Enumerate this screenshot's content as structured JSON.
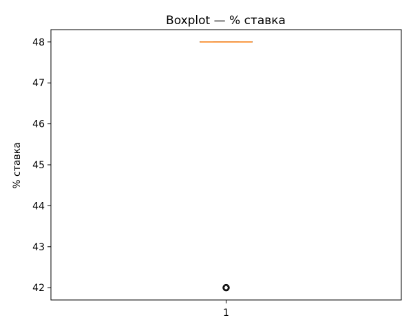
{
  "chart_data": {
    "type": "boxplot",
    "title": "Boxplot — % ставка",
    "xlabel": "",
    "ylabel": "% ставка",
    "categories": [
      "1"
    ],
    "ylim": [
      41.7,
      48.3
    ],
    "yticks": [
      42,
      43,
      44,
      45,
      46,
      47,
      48
    ],
    "grid": false,
    "boxes": [
      {
        "category": "1",
        "q1": 48,
        "median": 48,
        "q3": 48,
        "whisker_low": 48,
        "whisker_high": 48,
        "outliers": [
          42
        ]
      }
    ],
    "colors": {
      "median": "#ff7f0e",
      "box": "#000000",
      "outlier_edge": "#000000"
    }
  }
}
